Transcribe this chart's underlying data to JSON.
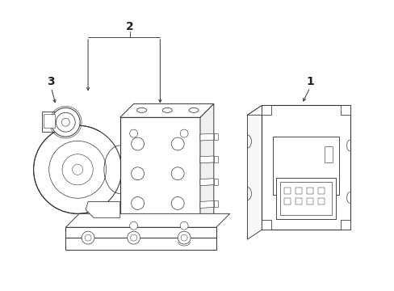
{
  "bg_color": "#ffffff",
  "line_color": "#333333",
  "lw": 0.7,
  "figsize": [
    4.89,
    3.6
  ],
  "dpi": 100
}
